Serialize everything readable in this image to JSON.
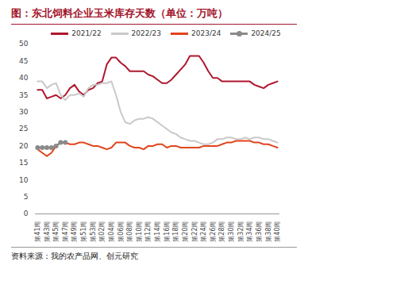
{
  "chart_data": {
    "type": "line",
    "title": "图：东北饲料企业玉米库存天数（单位：万吨）",
    "source": "资料来源：我的农产品网、创元研究",
    "categories": [
      "第41周",
      null,
      "第43周",
      null,
      "第45周",
      null,
      "第47周",
      null,
      "第49周",
      null,
      "第51周",
      null,
      "第53周",
      null,
      "第02周",
      null,
      "第04周",
      null,
      "第06周",
      null,
      "第08周",
      null,
      "第10周",
      null,
      "第12周",
      null,
      "第14周",
      null,
      "第16周",
      null,
      "第18周",
      null,
      "第20周",
      null,
      "第22周",
      null,
      "第24周",
      null,
      "第26周",
      null,
      "第28周",
      null,
      "第30周",
      null,
      "第32周",
      null,
      "第34周",
      null,
      "第36周",
      null,
      "第38周",
      null,
      "第40周"
    ],
    "series": [
      {
        "name": "2021/22",
        "color": "#b0172f",
        "values": [
          36.5,
          36.5,
          34,
          34.5,
          35,
          34,
          35,
          37,
          38,
          36,
          35,
          36.5,
          37,
          38.5,
          39,
          44,
          46,
          46,
          44.5,
          43.5,
          42,
          42,
          42,
          42,
          41,
          40.5,
          39.5,
          38.5,
          38.5,
          39.5,
          41,
          42.5,
          44,
          46.5,
          46.5,
          46.5,
          44.5,
          42,
          40,
          40,
          39,
          39,
          39,
          39,
          39,
          39,
          39,
          38,
          37.5,
          37,
          38,
          38.5,
          39
        ]
      },
      {
        "name": "2022/23",
        "color": "#c9c9c9",
        "values": [
          39,
          39,
          37,
          38,
          38.5,
          35,
          33.5,
          35,
          35,
          35.5,
          34.5,
          37,
          38,
          38,
          38.5,
          38.5,
          39,
          35,
          30,
          27,
          26.5,
          27.5,
          28,
          28,
          28.5,
          28,
          27,
          26,
          25,
          24,
          23.5,
          22.5,
          22,
          21.5,
          21.5,
          21,
          20.5,
          20.5,
          21,
          22,
          22,
          22.5,
          22.5,
          22,
          22,
          22.5,
          22,
          22.5,
          22.5,
          22,
          22,
          21.5,
          21
        ]
      },
      {
        "name": "2023/24",
        "color": "#e2441c",
        "values": [
          19,
          18,
          17,
          18,
          20,
          21,
          21,
          20.5,
          20.5,
          21,
          21,
          20.5,
          20,
          20,
          19.5,
          19,
          19.5,
          21,
          21,
          21,
          20,
          19.5,
          19.5,
          19,
          20,
          20,
          20.5,
          20.5,
          19.5,
          20,
          20,
          19.5,
          19.5,
          19.5,
          19.5,
          19.5,
          20,
          20,
          20,
          20,
          20.5,
          21,
          21,
          21.5,
          21.5,
          21.5,
          21.5,
          21,
          21,
          20.5,
          20.5,
          20,
          19.5
        ]
      },
      {
        "name": "2024/25",
        "color": "#8a8a8a",
        "marker": "circle",
        "values": [
          19.5,
          19.5,
          19.5,
          19.5,
          20,
          21,
          21,
          null,
          null,
          null,
          null,
          null,
          null,
          null,
          null,
          null,
          null,
          null,
          null,
          null,
          null,
          null,
          null,
          null,
          null,
          null,
          null,
          null,
          null,
          null,
          null,
          null,
          null,
          null,
          null,
          null,
          null,
          null,
          null,
          null,
          null,
          null,
          null,
          null,
          null,
          null,
          null,
          null,
          null,
          null,
          null,
          null,
          null
        ]
      }
    ],
    "ylim": [
      0,
      50
    ],
    "yticks": [
      0,
      5,
      10,
      15,
      20,
      25,
      30,
      35,
      40,
      45,
      50
    ],
    "grid": false,
    "legend": "top"
  }
}
